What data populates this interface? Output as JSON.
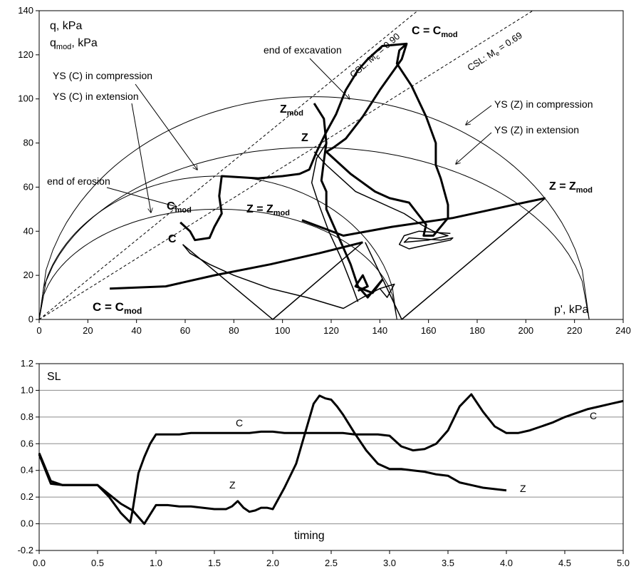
{
  "chart_data": [
    {
      "type": "line",
      "xlim": [
        0,
        240
      ],
      "ylim": [
        0,
        140
      ],
      "xticks": [
        "0",
        "20",
        "40",
        "60",
        "80",
        "100",
        "120",
        "140",
        "160",
        "180",
        "200",
        "220",
        "240"
      ],
      "yticks": [
        "0",
        "20",
        "40",
        "60",
        "80",
        "100",
        "120",
        "140"
      ],
      "grid": false,
      "texts": {
        "ylabel1": "q, kPa",
        "ylabel2_main": "q",
        "ylabel2_sub": "mod",
        "ylabel2_tail": ", kPa",
        "xlabel": "p', kPa",
        "csl_c_pre": "CSL: M",
        "csl_c_sub": "c",
        "csl_c_post": " = 0.90",
        "csl_e_pre": "CSL: M",
        "csl_e_sub": "e",
        "csl_e_post": " = 0.69",
        "end_excavation": "end of excavation",
        "end_erosion": "end of erosion",
        "ys_c_comp": "YS (C) in compression",
        "ys_c_ext": "YS (C) in extension",
        "ys_z_comp": "YS (Z) in compression",
        "ys_z_ext": "YS (Z) in extension",
        "c_top_a": "C = C",
        "c_top_sub": "mod",
        "c_bottom_a": "C = C",
        "c_bottom_sub": "mod",
        "cmod_main": "C",
        "cmod_sub": "mod",
        "c_plain": "C",
        "zmod_main": "Z",
        "zmod_sub": "mod",
        "z_plain": "Z",
        "z_eq_mid_a": "Z = Z",
        "z_eq_mid_sub": "mod",
        "z_eq_right_a": "Z = Z",
        "z_eq_right_sub": "mod"
      },
      "csl": [
        {
          "name": "CSL compression",
          "slope": 0.9
        },
        {
          "name": "CSL extension",
          "slope": 0.69
        }
      ],
      "yield_surfaces": [
        {
          "name": "YS (C) in compression",
          "p0": 0,
          "p1": 147,
          "qmax": 65
        },
        {
          "name": "YS (C) in extension",
          "p0": 0,
          "p1": 147,
          "qmax": 50
        },
        {
          "name": "YS (Z) in compression",
          "p0": 0,
          "p1": 226,
          "qmax": 101
        },
        {
          "name": "YS (Z) in extension",
          "p0": 0,
          "p1": 226,
          "qmax": 78
        }
      ],
      "series": [
        {
          "key": "c_thick_bottom",
          "width": 3,
          "points": [
            [
              29,
              14
            ],
            [
              52,
              15
            ],
            [
              72,
              20
            ],
            [
              95,
              25
            ],
            [
              115,
              30
            ],
            [
              133,
              35
            ]
          ]
        },
        {
          "key": "c_thin_v",
          "width": 1.5,
          "points": [
            [
              133,
              35
            ],
            [
              96,
              0
            ],
            [
              59,
              34
            ]
          ]
        },
        {
          "key": "z_thick_right",
          "width": 3,
          "points": [
            [
              108,
              45
            ],
            [
              125,
              38
            ],
            [
              145,
              42
            ],
            [
              170,
              46
            ],
            [
              195,
              52
            ],
            [
              208,
              55
            ]
          ]
        },
        {
          "key": "z_thin_v",
          "width": 1.5,
          "points": [
            [
              208,
              55
            ],
            [
              149,
              0
            ],
            [
              134,
              35
            ]
          ]
        },
        {
          "key": "cmod_path",
          "width": 3,
          "points": [
            [
              58,
              44
            ],
            [
              62,
              40
            ],
            [
              64,
              36
            ],
            [
              70,
              37
            ],
            [
              72,
              42
            ],
            [
              75,
              48
            ],
            [
              74,
              56
            ],
            [
              75,
              65
            ],
            [
              90,
              64
            ],
            [
              100,
              65
            ],
            [
              107,
              66
            ],
            [
              111,
              68
            ],
            [
              114,
              76
            ],
            [
              118,
              85
            ],
            [
              122,
              93
            ],
            [
              126,
              104
            ],
            [
              131,
              113
            ],
            [
              135,
              118
            ],
            [
              141,
              124
            ],
            [
              151,
              125
            ],
            [
              149,
              118
            ],
            [
              140,
              104
            ],
            [
              133,
              92
            ],
            [
              126,
              82
            ],
            [
              121,
              78
            ],
            [
              118,
              76
            ],
            [
              128,
              66
            ],
            [
              138,
              58
            ],
            [
              144,
              55
            ],
            [
              152,
              53
            ],
            [
              159,
              43
            ],
            [
              158,
              38
            ],
            [
              162,
              38
            ],
            [
              165,
              42
            ],
            [
              168,
              46
            ],
            [
              168,
              52
            ],
            [
              165,
              64
            ],
            [
              163,
              70
            ],
            [
              163,
              76
            ],
            [
              163,
              80
            ],
            [
              159,
              92
            ],
            [
              153,
              106
            ],
            [
              147,
              116
            ],
            [
              148,
              122
            ],
            [
              151,
              125
            ]
          ]
        },
        {
          "key": "zmod_path",
          "width": 3,
          "points": [
            [
              113,
              98
            ],
            [
              117,
              91
            ],
            [
              118,
              80
            ],
            [
              117,
              72
            ],
            [
              116,
              63
            ],
            [
              118,
              58
            ],
            [
              118,
              50
            ],
            [
              124,
              35
            ],
            [
              128,
              25
            ],
            [
              131,
              15
            ],
            [
              135,
              10
            ],
            [
              141,
              18
            ],
            [
              137,
              12
            ],
            [
              130,
              15
            ],
            [
              133,
              20
            ],
            [
              135,
              15
            ],
            [
              131,
              13
            ]
          ]
        },
        {
          "key": "z_thin_path",
          "width": 1.5,
          "points": [
            [
              113,
              76
            ],
            [
              118,
              70
            ],
            [
              130,
              58
            ],
            [
              150,
              48
            ],
            [
              157,
              43
            ],
            [
              162,
              40
            ],
            [
              168,
              38
            ],
            [
              160,
              36
            ],
            [
              150,
              35
            ],
            [
              152,
              37
            ],
            [
              165,
              36
            ],
            [
              170,
              37
            ],
            [
              169,
              36
            ],
            [
              156,
              33
            ],
            [
              152,
              32
            ],
            [
              148,
              34
            ],
            [
              150,
              38
            ],
            [
              156,
              40
            ],
            [
              169,
              39
            ]
          ]
        },
        {
          "key": "c_thin_path",
          "width": 1.5,
          "points": [
            [
              59,
              34
            ],
            [
              62,
              30
            ],
            [
              70,
              25
            ],
            [
              80,
              20
            ],
            [
              95,
              14
            ],
            [
              110,
              10
            ],
            [
              125,
              5
            ],
            [
              133,
              10
            ],
            [
              140,
              14
            ],
            [
              146,
              16
            ],
            [
              143,
              10
            ],
            [
              140,
              14
            ]
          ]
        },
        {
          "key": "z_thin_descent",
          "width": 1.5,
          "points": [
            [
              118,
              80
            ],
            [
              114,
              73
            ],
            [
              112,
              62
            ],
            [
              115,
              52
            ],
            [
              119,
              40
            ],
            [
              124,
              28
            ],
            [
              129,
              14
            ],
            [
              131,
              8
            ]
          ]
        }
      ]
    },
    {
      "type": "line",
      "xlim": [
        0,
        5
      ],
      "ylim": [
        -0.2,
        1.2
      ],
      "xticks": [
        "0.0",
        "0.5",
        "1.0",
        "1.5",
        "2.0",
        "2.5",
        "3.0",
        "3.5",
        "4.0",
        "4.5",
        "5.0"
      ],
      "yticks": [
        "-0.2",
        "0.0",
        "0.2",
        "0.4",
        "0.6",
        "0.8",
        "1.0",
        "1.2"
      ],
      "grid": true,
      "ylabel": "SL",
      "xlabel": "timing",
      "series": [
        {
          "name": "C",
          "x": [
            0.0,
            0.1,
            0.2,
            0.3,
            0.4,
            0.5,
            0.6,
            0.7,
            0.78,
            0.8,
            0.85,
            0.9,
            0.95,
            1.0,
            1.1,
            1.2,
            1.3,
            1.4,
            1.5,
            1.6,
            1.7,
            1.8,
            1.9,
            2.0,
            2.1,
            2.2,
            2.3,
            2.4,
            2.5,
            2.6,
            2.7,
            2.8,
            2.9,
            3.0,
            3.1,
            3.2,
            3.3,
            3.4,
            3.5,
            3.6,
            3.7,
            3.8,
            3.9,
            4.0,
            4.1,
            4.2,
            4.3,
            4.4,
            4.5,
            4.6,
            4.7,
            4.8,
            4.9,
            5.0
          ],
          "y": [
            0.53,
            0.32,
            0.29,
            0.29,
            0.29,
            0.29,
            0.2,
            0.08,
            0.01,
            0.1,
            0.38,
            0.5,
            0.6,
            0.67,
            0.67,
            0.67,
            0.68,
            0.68,
            0.68,
            0.68,
            0.68,
            0.68,
            0.69,
            0.69,
            0.68,
            0.68,
            0.68,
            0.68,
            0.68,
            0.68,
            0.67,
            0.67,
            0.67,
            0.66,
            0.58,
            0.55,
            0.56,
            0.6,
            0.7,
            0.88,
            0.97,
            0.84,
            0.73,
            0.68,
            0.68,
            0.7,
            0.73,
            0.76,
            0.8,
            0.83,
            0.86,
            0.88,
            0.9,
            0.92
          ]
        },
        {
          "name": "Z",
          "x": [
            0.0,
            0.1,
            0.2,
            0.3,
            0.4,
            0.5,
            0.6,
            0.7,
            0.8,
            0.9,
            1.0,
            1.1,
            1.2,
            1.3,
            1.4,
            1.5,
            1.6,
            1.65,
            1.7,
            1.75,
            1.8,
            1.85,
            1.9,
            1.95,
            2.0,
            2.1,
            2.2,
            2.3,
            2.35,
            2.4,
            2.45,
            2.5,
            2.55,
            2.6,
            2.7,
            2.8,
            2.9,
            3.0,
            3.1,
            3.2,
            3.3,
            3.4,
            3.5,
            3.6,
            3.7,
            3.8,
            3.9,
            4.0
          ],
          "y": [
            0.52,
            0.3,
            0.29,
            0.29,
            0.29,
            0.29,
            0.22,
            0.15,
            0.1,
            0.0,
            0.14,
            0.14,
            0.13,
            0.13,
            0.12,
            0.11,
            0.11,
            0.13,
            0.17,
            0.12,
            0.09,
            0.1,
            0.12,
            0.12,
            0.11,
            0.27,
            0.45,
            0.75,
            0.9,
            0.96,
            0.94,
            0.93,
            0.88,
            0.82,
            0.68,
            0.55,
            0.45,
            0.41,
            0.41,
            0.4,
            0.39,
            0.37,
            0.36,
            0.31,
            0.29,
            0.27,
            0.26,
            0.25
          ]
        }
      ],
      "labels": {
        "c_label": "C",
        "z_label": "Z"
      }
    }
  ]
}
